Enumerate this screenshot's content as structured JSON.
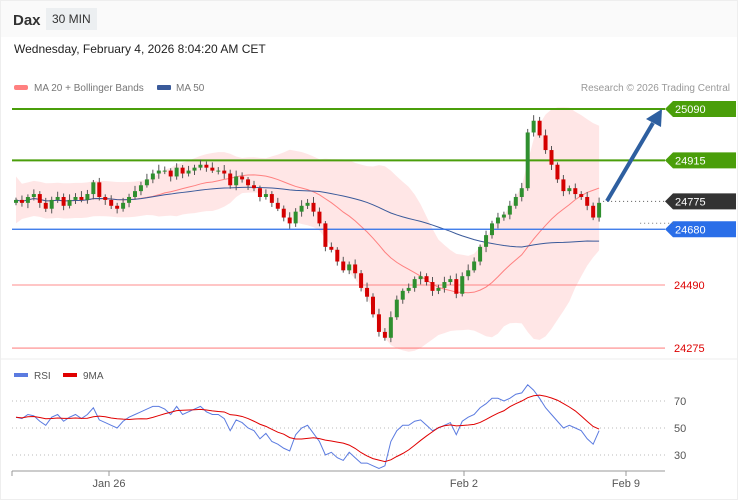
{
  "header": {
    "title": "Dax",
    "timeframe": "30 MIN",
    "datetime": "Wednesday, February 4, 2026 8:04:20 AM CET"
  },
  "legend": {
    "ma20": "MA 20 + Bollinger Bands",
    "ma50": "MA 50",
    "credit": "Research © 2026 Trading Central",
    "rsi": "RSI",
    "rsi_ma": "9MA"
  },
  "colors": {
    "up": "#2f8f2f",
    "down": "#d40000",
    "ma20": "#ff8080",
    "ma50": "#3a5a9a",
    "band": "#ffe0e0",
    "target": "#4a9e0a",
    "support": "#2a6ee8",
    "current": "#333333",
    "weak": "#ff6666",
    "arrow": "#2e5fa0",
    "rsi": "#5b7be0",
    "rsi_ma": "#e00000"
  },
  "chart_data": {
    "type": "candlestick",
    "ylim": [
      24250,
      25120
    ],
    "x_ticks": [
      "Jan 26",
      "Feb 2",
      "Feb 9"
    ],
    "levels": [
      {
        "value": 25090,
        "label": "25090",
        "kind": "target"
      },
      {
        "value": 24915,
        "label": "24915",
        "kind": "target"
      },
      {
        "value": 24775,
        "label": "24775",
        "kind": "current"
      },
      {
        "value": 24680,
        "label": "24680",
        "kind": "support"
      },
      {
        "value": 24490,
        "label": "24490",
        "kind": "weak"
      },
      {
        "value": 24275,
        "label": "24275",
        "kind": "weak"
      }
    ],
    "closes": [
      24780,
      24770,
      24790,
      24800,
      24770,
      24750,
      24780,
      24790,
      24760,
      24780,
      24790,
      24780,
      24800,
      24840,
      24790,
      24780,
      24760,
      24750,
      24770,
      24790,
      24810,
      24830,
      24850,
      24870,
      24880,
      24880,
      24860,
      24890,
      24870,
      24880,
      24890,
      24900,
      24890,
      24880,
      24880,
      24870,
      24830,
      24860,
      24850,
      24830,
      24820,
      24790,
      24800,
      24770,
      24750,
      24720,
      24700,
      24740,
      24760,
      24770,
      24740,
      24700,
      24620,
      24610,
      24570,
      24540,
      24560,
      24530,
      24480,
      24450,
      24390,
      24330,
      24310,
      24380,
      24440,
      24470,
      24480,
      24510,
      24520,
      24500,
      24470,
      24480,
      24500,
      24510,
      24460,
      24520,
      24540,
      24570,
      24620,
      24660,
      24700,
      24720,
      24730,
      24760,
      24790,
      24820,
      25010,
      25050,
      25000,
      24950,
      24900,
      24850,
      24810,
      24820,
      24800,
      24790,
      24760,
      24720,
      24770
    ],
    "rsi": {
      "ticks": [
        70,
        50,
        30
      ],
      "ylim": [
        20,
        85
      ],
      "values": [
        58,
        57,
        60,
        59,
        55,
        52,
        58,
        60,
        55,
        58,
        60,
        57,
        60,
        65,
        56,
        54,
        52,
        50,
        55,
        58,
        60,
        62,
        64,
        66,
        66,
        64,
        60,
        66,
        60,
        62,
        64,
        66,
        62,
        60,
        60,
        57,
        48,
        56,
        54,
        50,
        48,
        42,
        46,
        40,
        38,
        35,
        33,
        45,
        50,
        52,
        46,
        40,
        30,
        32,
        28,
        26,
        32,
        28,
        24,
        24,
        22,
        20,
        22,
        40,
        48,
        52,
        52,
        55,
        56,
        52,
        48,
        50,
        52,
        54,
        45,
        55,
        58,
        60,
        65,
        68,
        72,
        72,
        70,
        72,
        75,
        76,
        82,
        78,
        72,
        65,
        60,
        55,
        50,
        52,
        50,
        48,
        42,
        38,
        48
      ]
    }
  }
}
